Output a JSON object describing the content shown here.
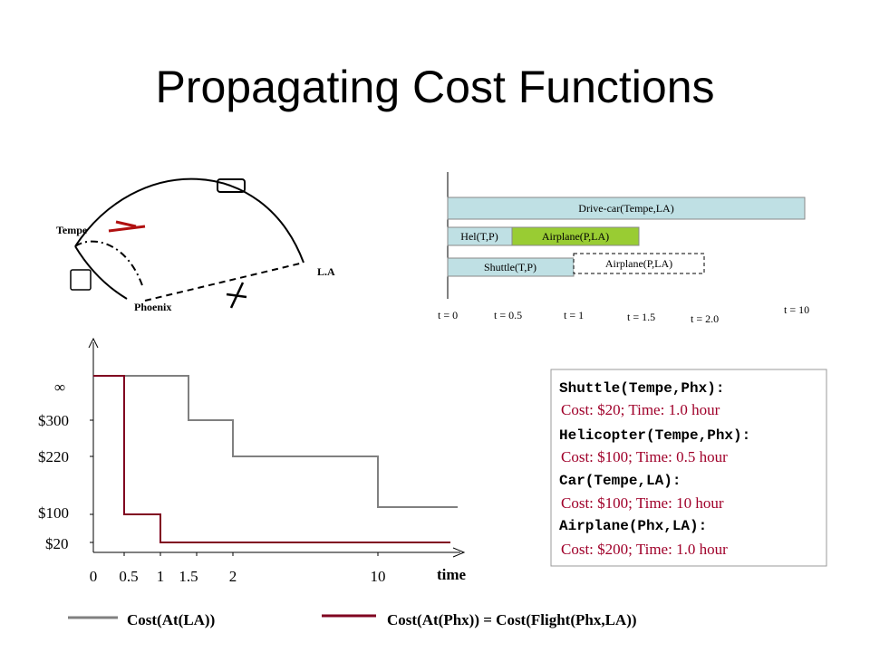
{
  "title": "Propagating Cost Functions",
  "map": {
    "labels": [
      "Tempe",
      "L.A",
      "Phoenix"
    ]
  },
  "timeline": {
    "bars": [
      "Drive-car(Tempe,LA)",
      "Hel(T,P)",
      "Airplane(P,LA)",
      "Shuttle(T,P)",
      "Airplane(P,LA)"
    ],
    "ticks": [
      "t = 0",
      "t = 0.5",
      "t = 1",
      "t = 1.5",
      "t = 2.0",
      "t = 10"
    ]
  },
  "plot": {
    "y_labels": [
      "∞",
      "$300",
      "$220",
      "$100",
      "$20"
    ],
    "x_labels": [
      "0",
      "0.5",
      "1",
      "1.5",
      "2",
      "10"
    ],
    "x_title": "time"
  },
  "info": {
    "items": [
      {
        "action": "Shuttle(Tempe,Phx):",
        "detail": "Cost: $20; Time: 1.0 hour"
      },
      {
        "action": "Helicopter(Tempe,Phx):",
        "detail": "Cost: $100; Time: 0.5 hour"
      },
      {
        "action": "Car(Tempe,LA):",
        "detail": "Cost: $100; Time: 10 hour"
      },
      {
        "action": "Airplane(Phx,LA):",
        "detail": "Cost: $200; Time: 1.0 hour"
      }
    ]
  },
  "legend": [
    "Cost(At(LA))",
    "Cost(At(Phx)) = Cost(Flight(Phx,LA))"
  ]
}
